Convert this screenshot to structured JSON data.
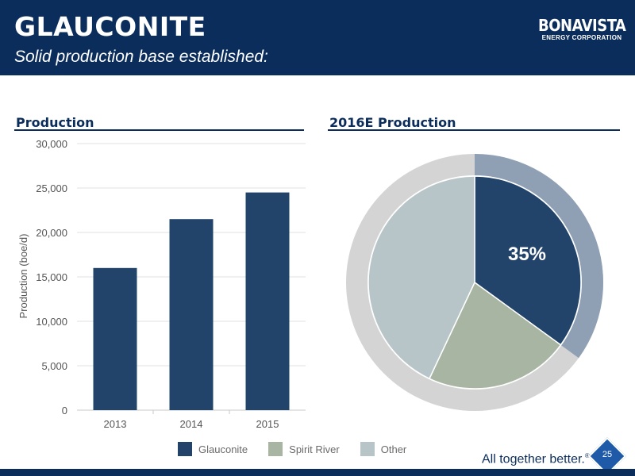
{
  "header": {
    "title": "GLAUCONITE",
    "subtitle": "Solid production base established:",
    "logo_main": "BONAVISTA",
    "logo_sub": "ENERGY CORPORATION"
  },
  "colors": {
    "header_bg": "#0b2d5b",
    "glauconite": "#22446b",
    "spirit_river": "#a9b5a3",
    "other": "#b7c5c8",
    "outer_ring": "#d4d4d4",
    "highlight_ring": "#8fa0b5"
  },
  "chart_data": [
    {
      "type": "bar",
      "title": "Production",
      "xlabel": "",
      "ylabel": "Production (boe/d)",
      "categories": [
        "2013",
        "2014",
        "2015"
      ],
      "values": [
        16000,
        21500,
        24500
      ],
      "ylim": [
        0,
        30000
      ],
      "yticks": [
        0,
        5000,
        10000,
        15000,
        20000,
        25000,
        30000
      ],
      "ytick_labels": [
        "0",
        "5,000",
        "10,000",
        "15,000",
        "20,000",
        "25,000",
        "30,000"
      ],
      "grid": true
    },
    {
      "type": "pie",
      "title": "2016E Production",
      "labels": [
        "Glauconite",
        "Spirit River",
        "Other"
      ],
      "values": [
        35,
        22,
        43
      ],
      "annotation": "35%",
      "legend_position": "bottom"
    }
  ],
  "legend": [
    "Glauconite",
    "Spirit River",
    "Other"
  ],
  "footer": {
    "tagline": "All together better.",
    "tagline_mark": "®",
    "page_number": "25"
  }
}
